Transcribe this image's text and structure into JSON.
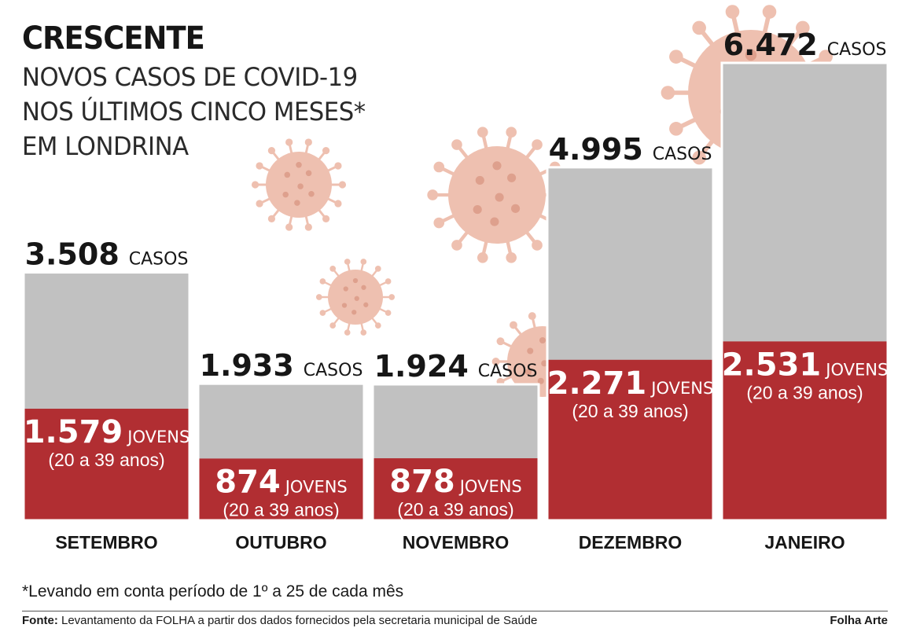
{
  "header": {
    "title": "CRESCENTE",
    "subtitle_lines": [
      "NOVOS CASOS DE COVID-19",
      "NOS ÚLTIMOS CINCO MESES*",
      "EM LONDRINA"
    ]
  },
  "chart_data": {
    "type": "bar",
    "categories": [
      "SETEMBRO",
      "OUTUBRO",
      "NOVEMBRO",
      "DEZEMBRO",
      "JANEIRO"
    ],
    "series": [
      {
        "name": "CASOS",
        "values": [
          3508,
          1933,
          1924,
          4995,
          6472
        ],
        "labels": [
          "3.508",
          "1.933",
          "1.924",
          "4.995",
          "6.472"
        ]
      },
      {
        "name": "JOVENS",
        "values": [
          1579,
          874,
          878,
          2271,
          2531
        ],
        "labels": [
          "1.579",
          "874",
          "878",
          "2.271",
          "2.531"
        ]
      }
    ],
    "total_unit": "CASOS",
    "young_unit": "JOVENS",
    "young_range": "(20 a 39 anos)",
    "colors": {
      "total": "#c1c1c1",
      "young": "#b12e32",
      "virus": "#ecb6a3"
    }
  },
  "footnote": "*Levando em conta período de 1º a 25 de cada mês",
  "source_label": "Fonte:",
  "source_text": "Levantamento da FOLHA a partir dos dados fornecidos pela secretaria municipal de Saúde",
  "credit": "Folha Arte",
  "decorations": {
    "icon": "virus-icon"
  }
}
